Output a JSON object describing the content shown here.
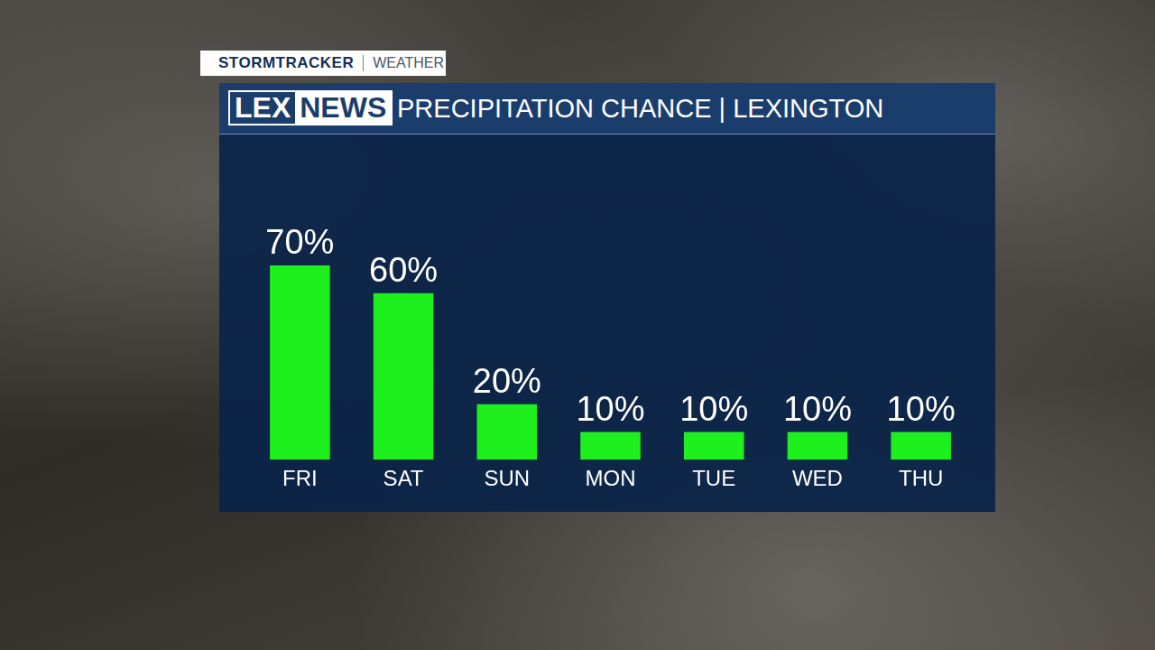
{
  "chart_data": {
    "type": "bar",
    "title": "PRECIPITATION CHANCE | LEXINGTON",
    "categories": [
      "FRI",
      "SAT",
      "SUN",
      "MON",
      "TUE",
      "WED",
      "THU"
    ],
    "values": [
      70,
      60,
      20,
      10,
      10,
      10,
      10
    ],
    "value_labels": [
      "70%",
      "60%",
      "20%",
      "10%",
      "10%",
      "10%",
      "10%"
    ],
    "color": "#1ef01e",
    "ylim": [
      0,
      70
    ],
    "grid": false,
    "data_labels": true,
    "tick_labels": "x"
  },
  "branding": {
    "tag": "STORMTRACKER",
    "tag_section": "WEATHER",
    "logo": [
      "LEX",
      "NEWS"
    ]
  }
}
